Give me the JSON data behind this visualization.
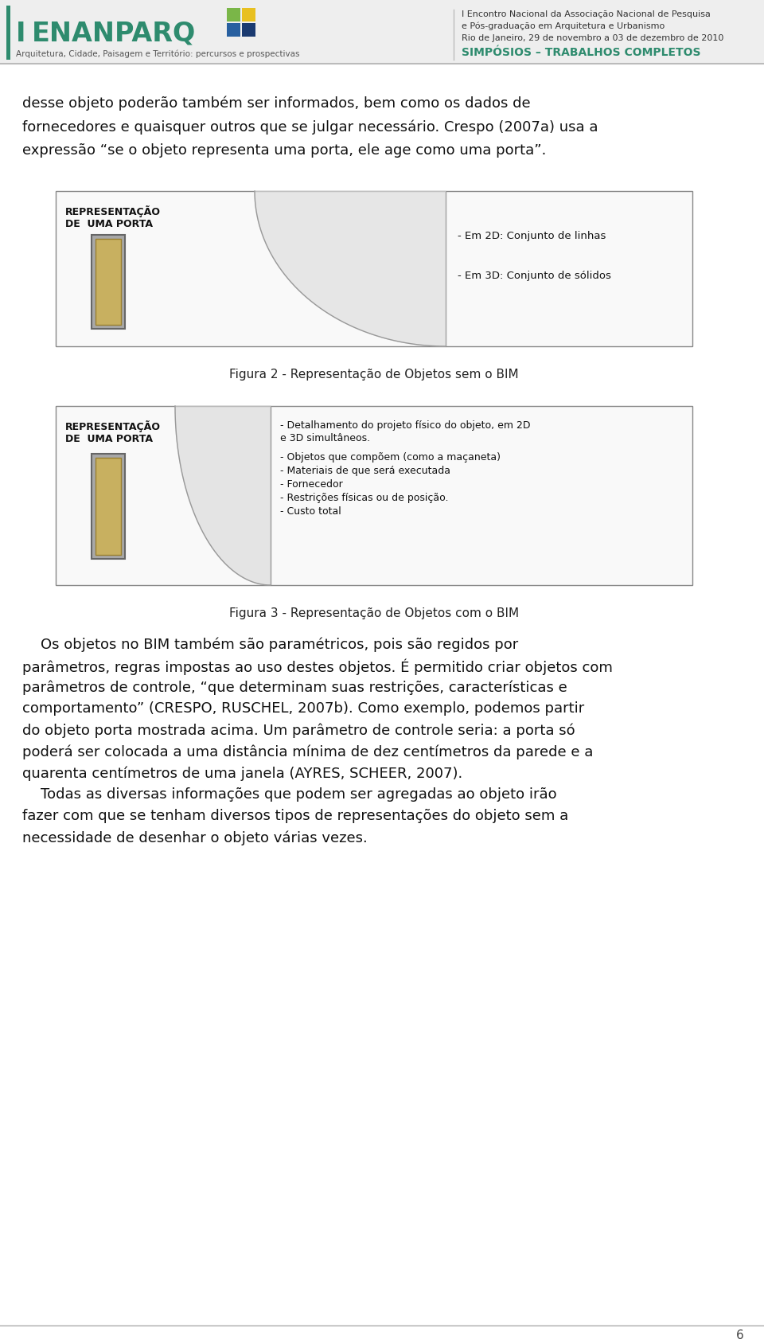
{
  "bg_color": "#ffffff",
  "teal_color": "#2e8b6e",
  "page_number": "6",
  "header_text_right1": "I Encontro Nacional da Associação Nacional de Pesquisa",
  "header_text_right2": "e Pós-graduação em Arquitetura e Urbanismo",
  "header_text_right3": "Rio de Janeiro, 29 de novembro a 03 de dezembro de 2010",
  "header_subtitle": "SIMPÓSIOS – TRABALHOS COMPLETOS",
  "header_subtitle_color": "#2e8b6e",
  "enanparq_color": "#2e8b6e",
  "logo_sub": "Arquitetura, Cidade, Paisagem e Território: percursos e prospectivas",
  "body_text1": "desse objeto poderão também ser informados, bem como os dados de",
  "body_text2": "fornecedores e quaisquer outros que se julgar necessário. Crespo (2007a) usa a",
  "body_text3": "expressão “se o objeto representa uma porta, ele age como uma porta”.",
  "figura2_caption": "Figura 2 - Representação de Objetos sem o BIM",
  "figura3_caption": "Figura 3 - Representação de Objetos com o BIM",
  "fig2_label1": "REPRESENTAÇÃO",
  "fig2_label2": "DE  UMA PORTA",
  "fig2_right1": "- Em 2D: Conjunto de linhas",
  "fig2_right2": "- Em 3D: Conjunto de sólidos",
  "fig3_label1": "REPRESENTAÇÃO",
  "fig3_label2": "DE  UMA PORTA",
  "fig3_right1": "- Detalhamento do projeto físico do objeto, em 2D",
  "fig3_right2": "e 3D simultâneos.",
  "fig3_right3": "- Objetos que compõem (como a maçaneta)",
  "fig3_right4": "- Materiais de que será executada",
  "fig3_right5": "- Fornecedor",
  "fig3_right6": "- Restrições físicas ou de posição.",
  "fig3_right7": "- Custo total",
  "bottom_text": [
    "    Os objetos no BIM também são paramétricos, pois são regidos por",
    "parâmetros, regras impostas ao uso destes objetos. É permitido criar objetos com",
    "parâmetros de controle, “que determinam suas restrições, características e",
    "comportamento” (CRESPO, RUSCHEL, 2007b). Como exemplo, podemos partir",
    "do objeto porta mostrada acima. Um parâmetro de controle seria: a porta só",
    "poderá ser colocada a uma distância mínima de dez centímetros da parede e a",
    "quarenta centímetros de uma janela (AYRES, SCHEER, 2007).",
    "    Todas as diversas informações que podem ser agregadas ao objeto irão",
    "fazer com que se tenham diversos tipos de representações do objeto sem a",
    "necessidade de desenhar o objeto várias vezes."
  ],
  "box_border_color": "#888888",
  "door_gold": "#c8b060",
  "door_gray": "#a8a8a8"
}
